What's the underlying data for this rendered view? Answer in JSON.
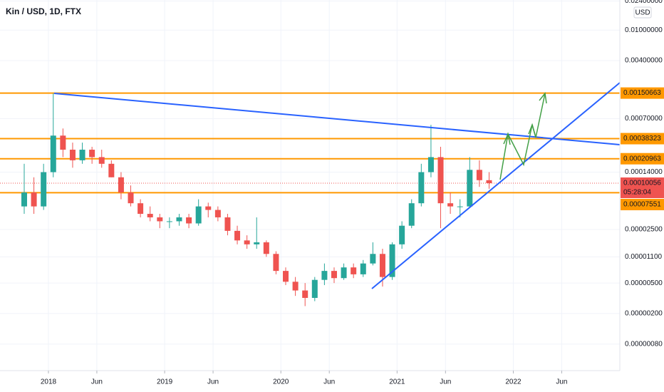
{
  "chart_data": {
    "type": "candlestick",
    "title": "Kin / USD, 1D, FTX",
    "currency": "USD",
    "log_scale": true,
    "grid": true,
    "up_color": "#26a69a",
    "down_color": "#ef5350",
    "xlim": [
      "2017-08",
      "2022-12"
    ],
    "xticks": [
      {
        "value": "2018-01",
        "label": "2018"
      },
      {
        "value": "2018-06",
        "label": "Jun"
      },
      {
        "value": "2019-01",
        "label": "2019"
      },
      {
        "value": "2019-06",
        "label": "Jun"
      },
      {
        "value": "2020-01",
        "label": "2020"
      },
      {
        "value": "2020-06",
        "label": "Jun"
      },
      {
        "value": "2021-01",
        "label": "2021"
      },
      {
        "value": "2021-06",
        "label": "Jun"
      },
      {
        "value": "2022-01",
        "label": "2022"
      },
      {
        "value": "2022-06",
        "label": "Jun"
      }
    ],
    "ylim": [
      3.6e-07,
      0.0247
    ],
    "yticks": [
      {
        "value": 0.024,
        "label": "0.02400000"
      },
      {
        "value": 0.01,
        "label": "0.01000000"
      },
      {
        "value": 0.004,
        "label": "0.00400000"
      },
      {
        "value": 0.0007,
        "label": "0.00070000"
      },
      {
        "value": 0.00014,
        "label": "0.00014000"
      },
      {
        "value": 2.5e-05,
        "label": "0.00002500"
      },
      {
        "value": 1.1e-05,
        "label": "0.00001100"
      },
      {
        "value": 5e-06,
        "label": "0.00000500"
      },
      {
        "value": 2e-06,
        "label": "0.00000200"
      },
      {
        "value": 8e-07,
        "label": "0.00000080"
      }
    ],
    "x": [
      "2017-10",
      "2017-11",
      "2017-12",
      "2018-01",
      "2018-02",
      "2018-03",
      "2018-04",
      "2018-05",
      "2018-06",
      "2018-07",
      "2018-08",
      "2018-09",
      "2018-10",
      "2018-11",
      "2018-12",
      "2019-01",
      "2019-02",
      "2019-03",
      "2019-04",
      "2019-05",
      "2019-06",
      "2019-07",
      "2019-08",
      "2019-09",
      "2019-10",
      "2019-11",
      "2019-12",
      "2020-01",
      "2020-02",
      "2020-03",
      "2020-04",
      "2020-05",
      "2020-06",
      "2020-07",
      "2020-08",
      "2020-09",
      "2020-10",
      "2020-11",
      "2020-12",
      "2021-01",
      "2021-02",
      "2021-03",
      "2021-04",
      "2021-05",
      "2021-06",
      "2021-07",
      "2021-08",
      "2021-09",
      "2021-10"
    ],
    "open": [
      5e-05,
      7.6e-05,
      5e-05,
      0.00014,
      0.00042,
      0.000275,
      0.0002,
      0.000275,
      0.00022,
      0.00018,
      0.00012,
      7.6e-05,
      5.5e-05,
      4e-05,
      3.6e-05,
      3.2e-05,
      3.2e-05,
      3.6e-05,
      3e-05,
      5e-05,
      4.5e-05,
      3.6e-05,
      2.4e-05,
      1.8e-05,
      1.6e-05,
      1.7e-05,
      1.2e-05,
      7.2e-06,
      5.2e-06,
      4e-06,
      3.2e-06,
      5.5e-06,
      7.2e-06,
      5.8e-06,
      8e-06,
      6.5e-06,
      9e-06,
      1.2e-05,
      6e-06,
      1.6e-05,
      2.8e-05,
      5.5e-05,
      0.00014,
      0.00022,
      5.5e-05,
      5e-05,
      5e-05,
      0.00015,
      0.00011
    ],
    "high": [
      0.00018,
      0.00012,
      0.00018,
      0.0015,
      0.00052,
      0.00034,
      0.00034,
      0.0003,
      0.000275,
      0.0002,
      0.00014,
      9.4e-05,
      6.2e-05,
      5e-05,
      4e-05,
      3.6e-05,
      4e-05,
      4e-05,
      6.2e-05,
      5.6e-05,
      5e-05,
      4e-05,
      2.8e-05,
      2.1e-05,
      3.6e-05,
      1.8e-05,
      1.3e-05,
      8e-06,
      6e-06,
      5e-06,
      6e-06,
      9e-06,
      8e-06,
      9e-06,
      9e-06,
      1e-05,
      1.7e-05,
      1.4e-05,
      1.7e-05,
      3.2e-05,
      6.2e-05,
      0.00018,
      0.00058,
      0.0003,
      7.6e-05,
      6.2e-05,
      0.00022,
      0.0002,
      0.00014
    ],
    "low": [
      4e-05,
      4e-05,
      4.5e-05,
      0.00012,
      0.00022,
      0.00016,
      0.00018,
      0.00018,
      0.00016,
      0.00012,
      6.2e-05,
      5e-05,
      3.6e-05,
      3.2e-05,
      2.6e-05,
      2.6e-05,
      2.8e-05,
      2.6e-05,
      2.8e-05,
      3.6e-05,
      3.2e-05,
      2.1e-05,
      1.6e-05,
      1.4e-05,
      1.4e-05,
      1.1e-05,
      6.5e-06,
      4.7e-06,
      3.4e-06,
      2.5e-06,
      2.9e-06,
      4.7e-06,
      5e-06,
      5.5e-06,
      5.8e-06,
      6e-06,
      8.5e-06,
      4.5e-06,
      5.5e-06,
      1.4e-05,
      2.6e-05,
      5e-05,
      0.00012,
      2.6e-05,
      4e-05,
      3.6e-05,
      4.8e-05,
      9e-05,
      8.5e-05
    ],
    "close": [
      7.6e-05,
      5e-05,
      0.00014,
      0.00042,
      0.000275,
      0.0002,
      0.000275,
      0.00022,
      0.00018,
      0.00012,
      7.6e-05,
      5.5e-05,
      4e-05,
      3.6e-05,
      3.2e-05,
      3.2e-05,
      3.6e-05,
      3e-05,
      5e-05,
      4.5e-05,
      3.6e-05,
      2.4e-05,
      1.8e-05,
      1.6e-05,
      1.7e-05,
      1.2e-05,
      7.2e-06,
      5.2e-06,
      4e-06,
      3.2e-06,
      5.5e-06,
      7.2e-06,
      5.8e-06,
      8e-06,
      6.5e-06,
      9e-06,
      1.2e-05,
      6e-06,
      1.6e-05,
      2.8e-05,
      5.5e-05,
      0.00014,
      0.00022,
      5.5e-05,
      5e-05,
      5e-05,
      0.00015,
      0.00011,
      0.00010056
    ],
    "levels": {
      "color": "#ff9800",
      "values": [
        0.00150663,
        0.00038323,
        0.00020963,
        7.551e-05
      ]
    },
    "current_price": 0.00010056,
    "countdown": "05:28:04",
    "price_color": "#ef5350"
  }
}
